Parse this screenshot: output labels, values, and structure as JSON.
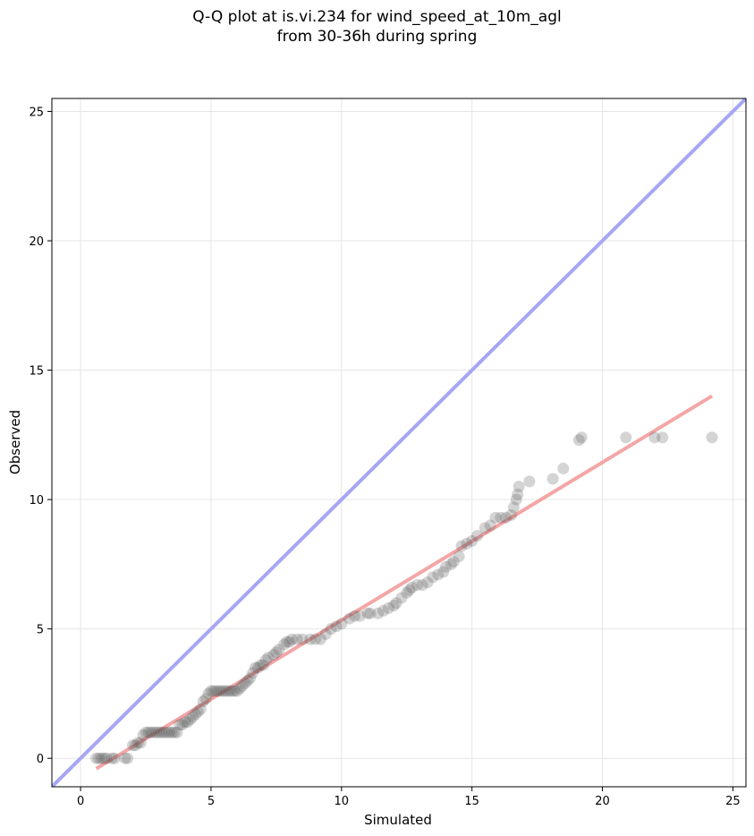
{
  "title_line1": "Q-Q plot at is.vi.234 for wind_speed_at_10m_agl",
  "title_line2": "from 30-36h during spring",
  "chart_data": {
    "type": "scatter",
    "title": "Q-Q plot at is.vi.234 for wind_speed_at_10m_agl\nfrom 30-36h during spring",
    "xlabel": "Simulated",
    "ylabel": "Observed",
    "xlim": [
      -1.1,
      25.5
    ],
    "ylim": [
      -1.1,
      25.5
    ],
    "xticks": [
      0,
      5,
      10,
      15,
      20,
      25
    ],
    "yticks": [
      0,
      5,
      10,
      15,
      20,
      25
    ],
    "grid": true,
    "legend": "none",
    "identity_line": {
      "color": "#a6a6f5",
      "from": [
        -1.1,
        -1.1
      ],
      "to": [
        25.5,
        25.5
      ]
    },
    "fit_line": {
      "color": "#f4a6a6",
      "from": [
        0.6,
        -0.4
      ],
      "to": [
        24.2,
        14.0
      ]
    },
    "point_color": "#555555",
    "points": [
      [
        0.6,
        0.0
      ],
      [
        0.7,
        0.0
      ],
      [
        0.8,
        0.0
      ],
      [
        0.9,
        0.0
      ],
      [
        1.0,
        0.0
      ],
      [
        1.2,
        0.0
      ],
      [
        1.3,
        0.0
      ],
      [
        1.7,
        0.0
      ],
      [
        1.8,
        0.0
      ],
      [
        2.0,
        0.5
      ],
      [
        2.1,
        0.5
      ],
      [
        2.2,
        0.6
      ],
      [
        2.3,
        0.6
      ],
      [
        2.4,
        0.9
      ],
      [
        2.5,
        1.0
      ],
      [
        2.6,
        1.0
      ],
      [
        2.7,
        1.0
      ],
      [
        2.8,
        1.0
      ],
      [
        2.9,
        1.0
      ],
      [
        3.0,
        1.0
      ],
      [
        3.1,
        1.0
      ],
      [
        3.2,
        1.0
      ],
      [
        3.3,
        1.0
      ],
      [
        3.4,
        1.0
      ],
      [
        3.5,
        1.0
      ],
      [
        3.6,
        1.0
      ],
      [
        3.7,
        1.0
      ],
      [
        3.8,
        1.3
      ],
      [
        3.9,
        1.3
      ],
      [
        4.0,
        1.4
      ],
      [
        4.1,
        1.4
      ],
      [
        4.2,
        1.5
      ],
      [
        4.3,
        1.6
      ],
      [
        4.4,
        1.7
      ],
      [
        4.5,
        1.8
      ],
      [
        4.6,
        1.9
      ],
      [
        4.7,
        2.2
      ],
      [
        4.8,
        2.3
      ],
      [
        4.9,
        2.5
      ],
      [
        5.0,
        2.6
      ],
      [
        5.1,
        2.6
      ],
      [
        5.2,
        2.6
      ],
      [
        5.3,
        2.6
      ],
      [
        5.4,
        2.6
      ],
      [
        5.5,
        2.6
      ],
      [
        5.6,
        2.6
      ],
      [
        5.7,
        2.6
      ],
      [
        5.8,
        2.6
      ],
      [
        5.9,
        2.6
      ],
      [
        6.0,
        2.6
      ],
      [
        6.1,
        2.7
      ],
      [
        6.2,
        2.8
      ],
      [
        6.3,
        2.9
      ],
      [
        6.4,
        3.0
      ],
      [
        6.5,
        3.1
      ],
      [
        6.6,
        3.3
      ],
      [
        6.7,
        3.5
      ],
      [
        6.8,
        3.5
      ],
      [
        6.9,
        3.6
      ],
      [
        7.0,
        3.6
      ],
      [
        7.1,
        3.8
      ],
      [
        7.2,
        3.9
      ],
      [
        7.4,
        4.0
      ],
      [
        7.5,
        4.1
      ],
      [
        7.6,
        4.2
      ],
      [
        7.8,
        4.4
      ],
      [
        7.9,
        4.5
      ],
      [
        8.0,
        4.5
      ],
      [
        8.1,
        4.6
      ],
      [
        8.3,
        4.6
      ],
      [
        8.5,
        4.6
      ],
      [
        8.8,
        4.6
      ],
      [
        9.0,
        4.6
      ],
      [
        9.2,
        4.6
      ],
      [
        9.4,
        4.8
      ],
      [
        9.6,
        5.0
      ],
      [
        9.8,
        5.1
      ],
      [
        10.0,
        5.2
      ],
      [
        10.3,
        5.4
      ],
      [
        10.5,
        5.5
      ],
      [
        10.7,
        5.5
      ],
      [
        11.0,
        5.6
      ],
      [
        11.1,
        5.6
      ],
      [
        11.4,
        5.6
      ],
      [
        11.6,
        5.7
      ],
      [
        11.8,
        5.8
      ],
      [
        12.0,
        5.9
      ],
      [
        12.1,
        6.0
      ],
      [
        12.3,
        6.2
      ],
      [
        12.5,
        6.4
      ],
      [
        12.6,
        6.5
      ],
      [
        12.7,
        6.6
      ],
      [
        12.9,
        6.7
      ],
      [
        13.1,
        6.7
      ],
      [
        13.3,
        6.8
      ],
      [
        13.5,
        7.0
      ],
      [
        13.7,
        7.1
      ],
      [
        13.9,
        7.2
      ],
      [
        14.0,
        7.4
      ],
      [
        14.2,
        7.5
      ],
      [
        14.3,
        7.6
      ],
      [
        14.5,
        7.8
      ],
      [
        14.6,
        8.2
      ],
      [
        14.8,
        8.3
      ],
      [
        15.0,
        8.4
      ],
      [
        15.2,
        8.6
      ],
      [
        15.5,
        8.9
      ],
      [
        15.7,
        9.0
      ],
      [
        15.9,
        9.3
      ],
      [
        16.1,
        9.3
      ],
      [
        16.3,
        9.3
      ],
      [
        16.5,
        9.4
      ],
      [
        16.6,
        9.7
      ],
      [
        16.7,
        10.0
      ],
      [
        16.75,
        10.2
      ],
      [
        16.8,
        10.5
      ],
      [
        17.2,
        10.7
      ],
      [
        18.1,
        10.8
      ],
      [
        18.5,
        11.2
      ],
      [
        19.1,
        12.3
      ],
      [
        19.2,
        12.4
      ],
      [
        20.9,
        12.4
      ],
      [
        22.0,
        12.4
      ],
      [
        22.3,
        12.4
      ],
      [
        24.2,
        12.4
      ]
    ]
  }
}
